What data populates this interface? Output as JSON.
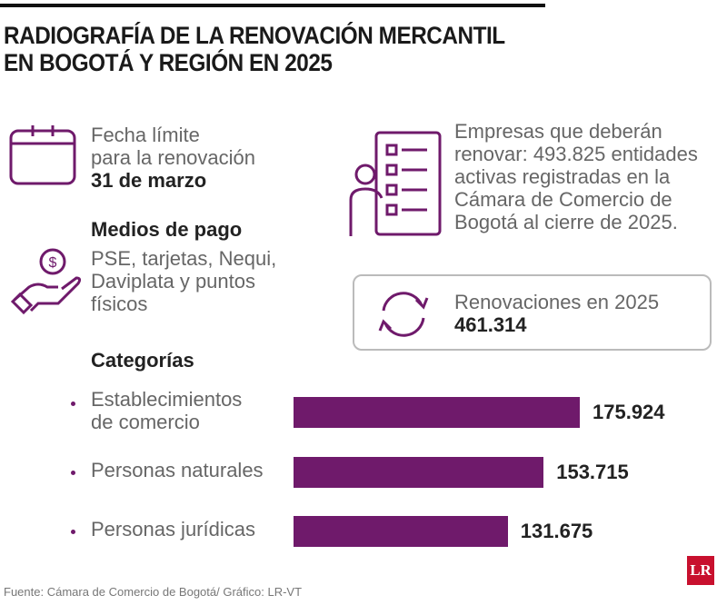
{
  "title": [
    "RADIOGRAFÍA DE LA RENOVACIÓN MERCANTIL",
    "EN BOGOTÁ Y REGIÓN EN 2025"
  ],
  "deadline": {
    "line1": "Fecha límite",
    "line2": "para la renovación",
    "date": "31 de marzo"
  },
  "payment": {
    "heading": "Medios de pago",
    "line1": "PSE, tarjetas, Nequi,",
    "line2": "Daviplata y puntos",
    "line3": "físicos"
  },
  "companies": {
    "line1": "Empresas que deberán",
    "line2": "renovar: 493.825 entidades",
    "line3": "activas registradas en la",
    "line4": "Cámara de Comercio de",
    "line5": "Bogotá al cierre de 2025."
  },
  "renewals": {
    "label": "Renovaciones en 2025",
    "value": "461.314"
  },
  "colors": {
    "accent": "#6f1a6b",
    "logo": "#c8102e"
  },
  "chart_data": {
    "type": "bar",
    "orientation": "horizontal",
    "title": "Categorías",
    "categories": [
      [
        "Establecimientos",
        "de comercio"
      ],
      [
        "Personas naturales"
      ],
      [
        "Personas jurídicas"
      ]
    ],
    "values": [
      175924,
      153715,
      131675
    ],
    "labels": [
      "175.924",
      "153.715",
      "131.675"
    ]
  },
  "source": "Fuente: Cámara de Comercio de Bogotá/ Gráfico: LR-VT",
  "logo": "LR"
}
